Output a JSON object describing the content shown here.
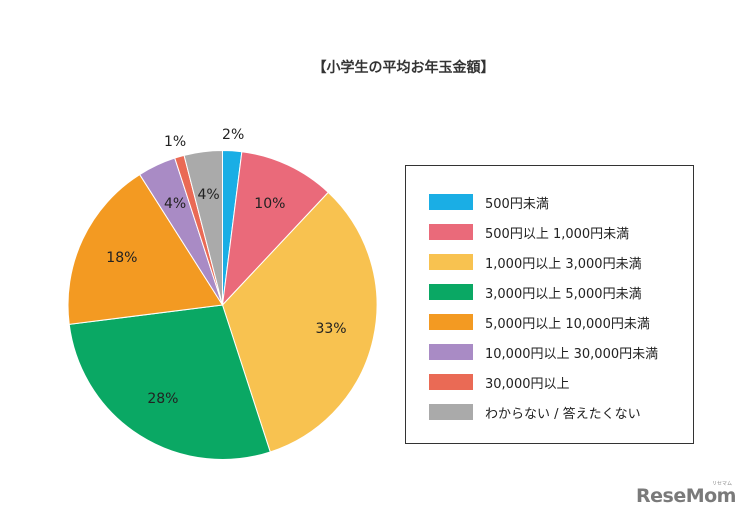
{
  "chart_data": {
    "type": "pie",
    "title": "【小学生の平均お年玉金額】",
    "start_angle_deg": 0,
    "direction": "clockwise",
    "categories": [
      "500円未満",
      "500円以上 1,000円未満",
      "1,000円以上 3,000円未満",
      "3,000円以上 5,000円未満",
      "5,000円以上 10,000円未満",
      "10,000円以上 30,000円未満",
      "30,000円以上",
      "わからない / 答えたくない"
    ],
    "values": [
      2,
      10,
      33,
      28,
      18,
      4,
      1,
      4
    ],
    "labels": [
      "2%",
      "10%",
      "33%",
      "28%",
      "18%",
      "4%",
      "1%",
      "4%"
    ],
    "colors": [
      "#1aaee5",
      "#ea6a7a",
      "#f8c250",
      "#0aa864",
      "#f39a22",
      "#a98bc5",
      "#ea6a55",
      "#aaaaaa"
    ],
    "legend_position": "right",
    "unit": "%"
  },
  "title": "【小学生の平均お年玉金額】",
  "legend": {
    "items": [
      {
        "label": "500円未満",
        "color": "#1aaee5"
      },
      {
        "label": "500円以上 1,000円未満",
        "color": "#ea6a7a"
      },
      {
        "label": "1,000円以上 3,000円未満",
        "color": "#f8c250"
      },
      {
        "label": "3,000円以上 5,000円未満",
        "color": "#0aa864"
      },
      {
        "label": "5,000円以上 10,000円未満",
        "color": "#f39a22"
      },
      {
        "label": "10,000円以上 30,000円未満",
        "color": "#a98bc5"
      },
      {
        "label": "30,000円以上",
        "color": "#ea6a55"
      },
      {
        "label": "わからない / 答えたくない",
        "color": "#aaaaaa"
      }
    ]
  },
  "watermark": {
    "text": "ReseMom",
    "kana": "リセマム"
  }
}
